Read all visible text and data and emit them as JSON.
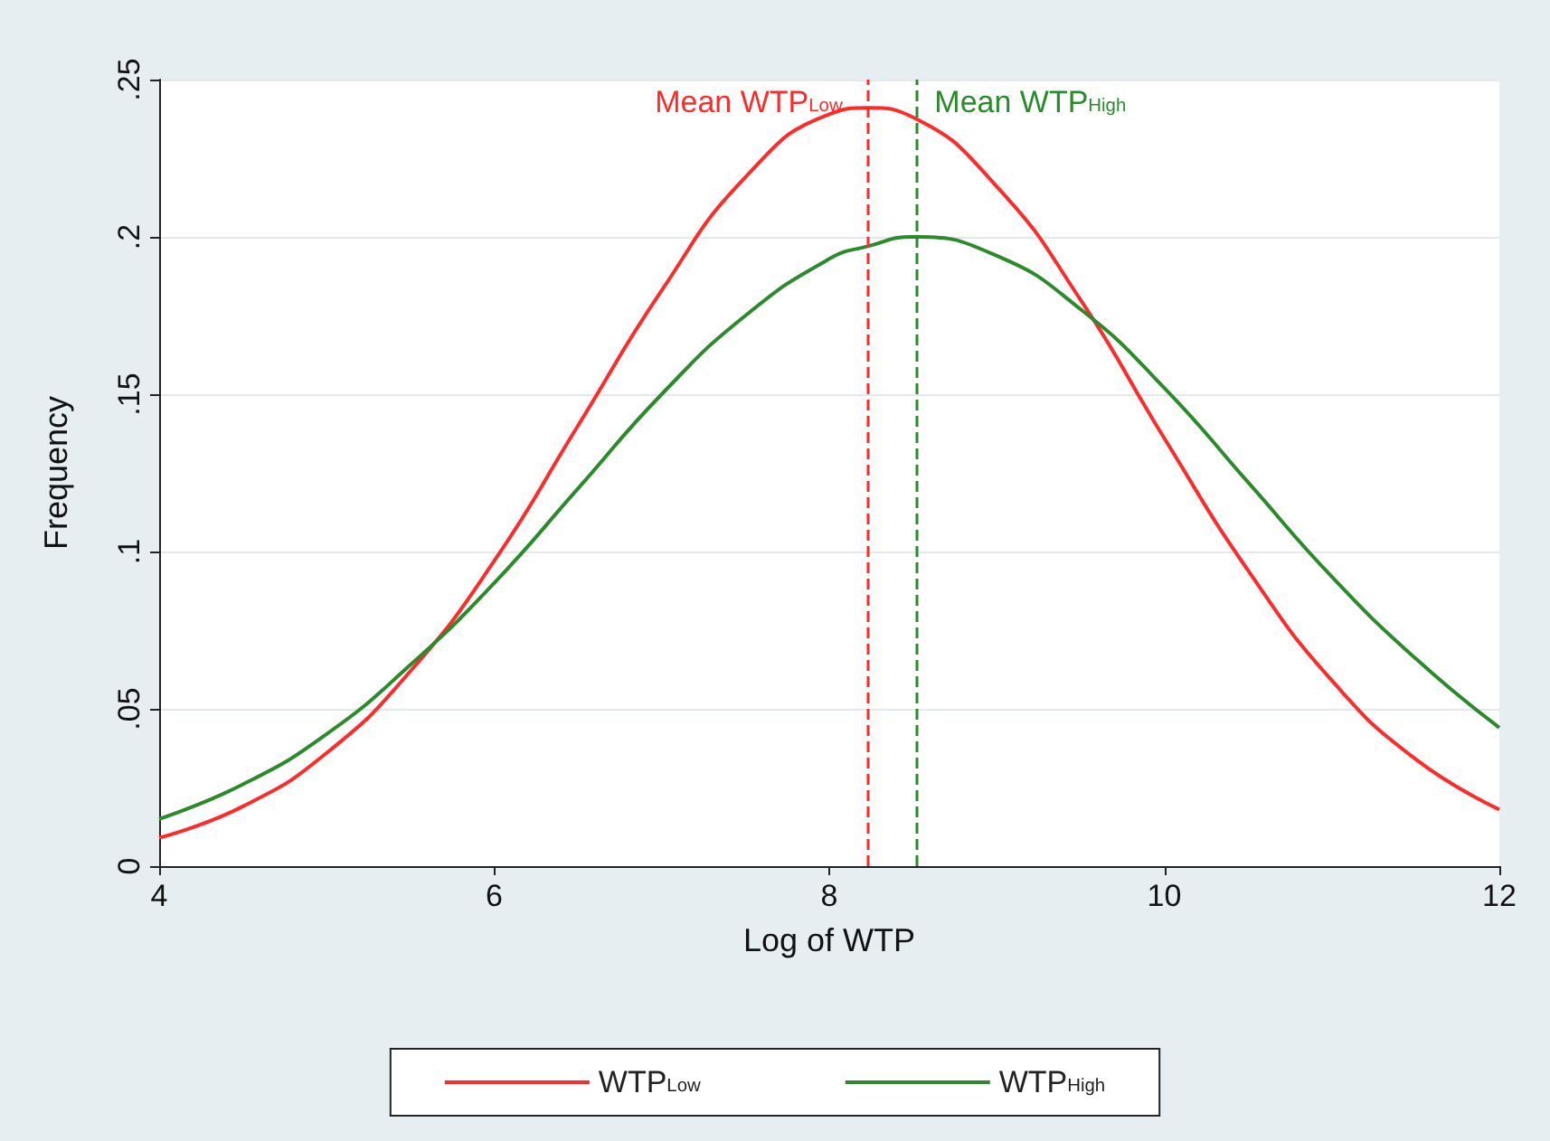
{
  "chart_data": {
    "type": "line",
    "xlabel": "Log of WTP",
    "ylabel": "Frequency",
    "x": [
      4,
      4.5,
      5,
      5.5,
      6,
      6.5,
      7,
      7.5,
      8,
      8.23,
      8.5,
      9,
      9.5,
      10,
      10.5,
      11,
      11.5,
      12
    ],
    "series": [
      {
        "name": "WTP$_{Low}$",
        "color": "#ff2b2b",
        "values": [
          0.009,
          0.019,
          0.036,
          0.062,
          0.097,
          0.14,
          0.183,
          0.219,
          0.239,
          0.241,
          0.238,
          0.216,
          0.18,
          0.136,
          0.094,
          0.059,
          0.034,
          0.018
        ]
      },
      {
        "name": "WTP$_{High}$",
        "color": "#2b8a2b",
        "values": [
          0.015,
          0.026,
          0.042,
          0.064,
          0.09,
          0.12,
          0.15,
          0.175,
          0.193,
          0.197,
          0.2,
          0.194,
          0.177,
          0.152,
          0.122,
          0.092,
          0.066,
          0.044
        ]
      }
    ],
    "ref_lines": [
      {
        "axis": "x",
        "value": 8.23,
        "label": "Mean WTP$_{Low}$",
        "color": "#ff2b2b",
        "line_style": "dashed"
      },
      {
        "axis": "x",
        "value": 8.52,
        "label": "Mean WTP$_{High}$",
        "color": "#2b8a2b",
        "line_style": "dashed"
      }
    ],
    "xlim": [
      4,
      12
    ],
    "xticks": [
      4,
      6,
      8,
      10,
      12
    ],
    "ylim": [
      0,
      0.25
    ],
    "yticks": [
      {
        "value": 0,
        "label": "0"
      },
      {
        "value": 0.05,
        "label": ".05"
      },
      {
        "value": 0.1,
        "label": ".1"
      },
      {
        "value": 0.15,
        "label": ".15"
      },
      {
        "value": 0.2,
        "label": ".2"
      },
      {
        "value": 0.25,
        "label": ".25"
      }
    ],
    "grid": "y",
    "legend": "bottom",
    "marker": "none",
    "line_style": "solid"
  }
}
